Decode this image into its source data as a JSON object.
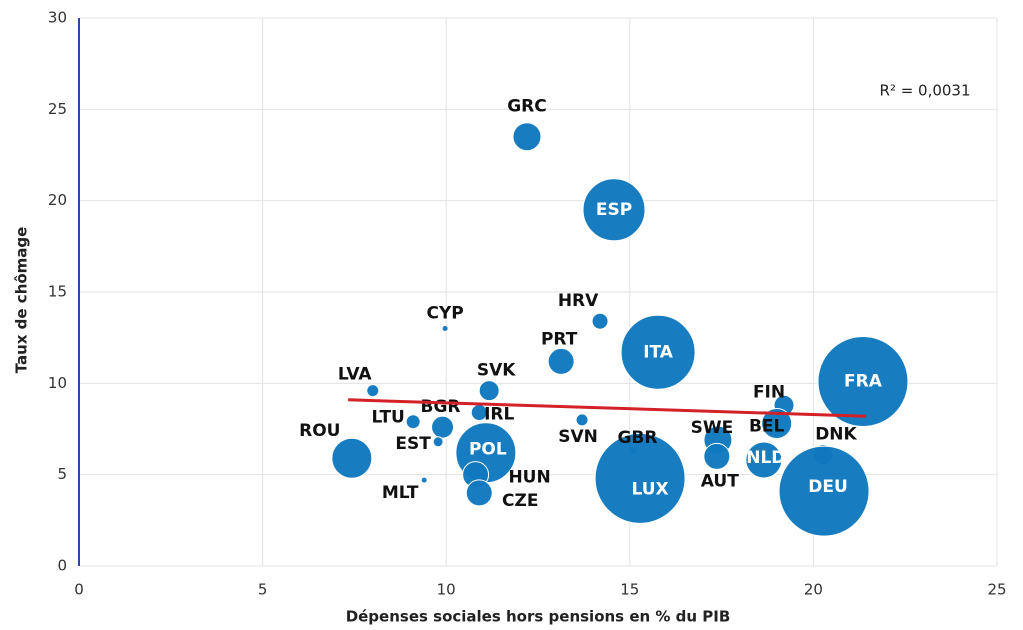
{
  "chart_data": {
    "type": "scatter",
    "xlabel": "Dépenses sociales hors pensions en % du PIB",
    "ylabel": "Taux de chômage",
    "annotation": "R² = 0,0031",
    "xlim": [
      0,
      25
    ],
    "xticks": [
      0,
      5,
      10,
      15,
      20,
      25
    ],
    "ylim": [
      0,
      30
    ],
    "yticks": [
      0,
      5,
      10,
      15,
      20,
      25,
      30
    ],
    "grid": true,
    "series": [
      {
        "color": "#0f78be",
        "labels": [
          "GRC",
          "ESP",
          "HRV",
          "CYP",
          "PRT",
          "ITA",
          "FRA",
          "LVA",
          "SVK",
          "FIN",
          "BEL",
          "LTU",
          "BGR",
          "IRL",
          "SVN",
          "EST",
          "ROU",
          "POL",
          "GBR",
          "SWE",
          "AUT",
          "NLD",
          "DNK",
          "LUX",
          "DEU",
          "HUN",
          "CZE",
          "MLT"
        ],
        "x": [
          12.2,
          14.57,
          14.19,
          9.97,
          13.13,
          15.77,
          21.35,
          8.0,
          11.17,
          19.2,
          19.0,
          9.1,
          9.9,
          10.9,
          13.7,
          9.78,
          7.43,
          11.08,
          15.1,
          17.4,
          17.37,
          18.65,
          20.26,
          15.28,
          20.29,
          10.8,
          10.9,
          9.4
        ],
        "values": [
          23.5,
          19.5,
          13.4,
          13.0,
          11.2,
          11.7,
          10.1,
          9.6,
          9.6,
          8.8,
          7.8,
          7.9,
          7.6,
          8.4,
          8.0,
          6.8,
          5.9,
          6.2,
          6.3,
          6.9,
          6.0,
          5.8,
          6.1,
          4.8,
          4.1,
          5.0,
          4.0,
          4.7
        ],
        "sizes": [
          14,
          31,
          8,
          3,
          13,
          37,
          45,
          6,
          10,
          10,
          15,
          7,
          11,
          8,
          6,
          5,
          20,
          30,
          4,
          14,
          13,
          18,
          10,
          45,
          45,
          13,
          13,
          3
        ]
      }
    ],
    "trendline": {
      "color": "#d42027",
      "x": [
        7.33,
        21.43
      ],
      "values": [
        9.1,
        8.2
      ]
    }
  }
}
